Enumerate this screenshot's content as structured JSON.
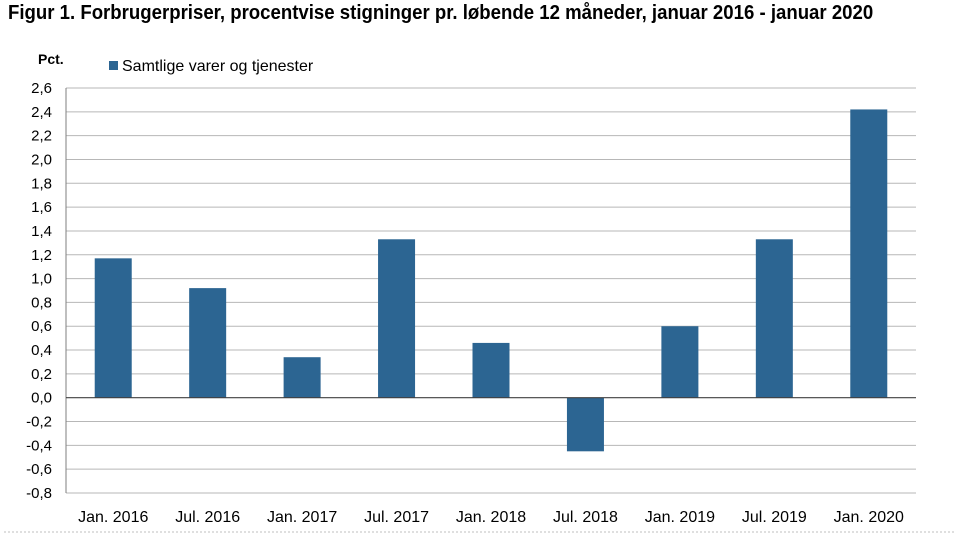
{
  "title": "Figur 1. Forbrugerpriser, procentvise stigninger pr. løbende 12 måneder, januar 2016 - januar 2020",
  "colors": {
    "bar": "#2c6592",
    "grid": "#b7b7b7",
    "axis": "#7f7f7f"
  },
  "chart_data": {
    "type": "bar",
    "title": "Figur 1. Forbrugerpriser, procentvise stigninger pr. løbende 12 måneder, januar 2016 - januar 2020",
    "ylabel": "Pct.",
    "xlabel": "",
    "ylim": [
      -0.8,
      2.6
    ],
    "ytick_step": 0.2,
    "ytick_labels": [
      "2,6",
      "2,4",
      "2,2",
      "2,0",
      "1,8",
      "1,6",
      "1,4",
      "1,2",
      "1,0",
      "0,8",
      "0,6",
      "0,4",
      "0,2",
      "0,0",
      "-0,2",
      "-0,4",
      "-0,6",
      "-0,8"
    ],
    "grid": true,
    "legend_position": "top-left",
    "categories": [
      "Jan. 2016",
      "Jul. 2016",
      "Jan. 2017",
      "Jul. 2017",
      "Jan. 2018",
      "Jul. 2018",
      "Jan. 2019",
      "Jul. 2019",
      "Jan. 2020"
    ],
    "series": [
      {
        "name": "Samtlige varer og tjenester",
        "values": [
          1.17,
          0.92,
          0.34,
          1.33,
          0.46,
          -0.45,
          0.6,
          1.33,
          2.42
        ]
      }
    ]
  }
}
